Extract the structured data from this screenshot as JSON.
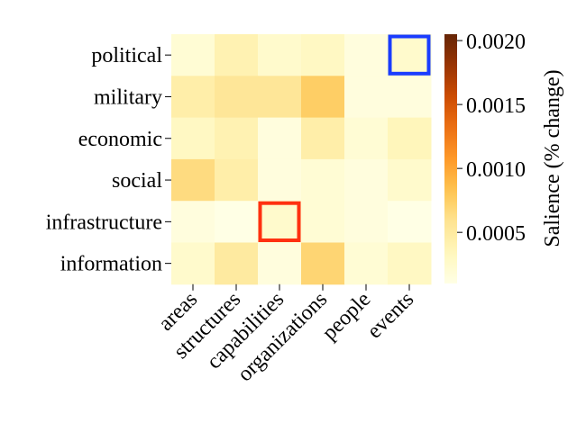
{
  "chart_data": {
    "type": "heatmap",
    "rows": [
      "political",
      "military",
      "economic",
      "social",
      "infrastructure",
      "information"
    ],
    "columns": [
      "areas",
      "structures",
      "capabilities",
      "organizations",
      "people",
      "events"
    ],
    "values": [
      [
        0.0002,
        0.0004,
        0.00025,
        0.0003,
        0.00015,
        0.00025
      ],
      [
        0.00045,
        0.00055,
        0.00055,
        0.00075,
        0.00015,
        0.00015
      ],
      [
        0.0003,
        0.0004,
        0.00015,
        0.00045,
        0.0002,
        0.00035
      ],
      [
        0.00065,
        0.00045,
        0.00015,
        0.0002,
        0.00015,
        0.00025
      ],
      [
        0.00015,
        5e-05,
        0.00025,
        0.0002,
        0.00015,
        0.0001
      ],
      [
        0.00025,
        0.0005,
        0.00015,
        0.0007,
        0.0002,
        0.0003
      ]
    ],
    "vmin": 0.0001,
    "vmax": 0.00205,
    "colormap": "YlOrBr",
    "colorbar": {
      "label": "Salience (% change)",
      "ticks": [
        0.0005,
        0.001,
        0.0015,
        0.002
      ],
      "tick_labels": [
        "0.0005",
        "0.0010",
        "0.0015",
        "0.0020"
      ]
    },
    "highlights": [
      {
        "row": "political",
        "column": "events",
        "color": "#1a3cff"
      },
      {
        "row": "infrastructure",
        "column": "capabilities",
        "color": "#ff3010"
      }
    ]
  }
}
